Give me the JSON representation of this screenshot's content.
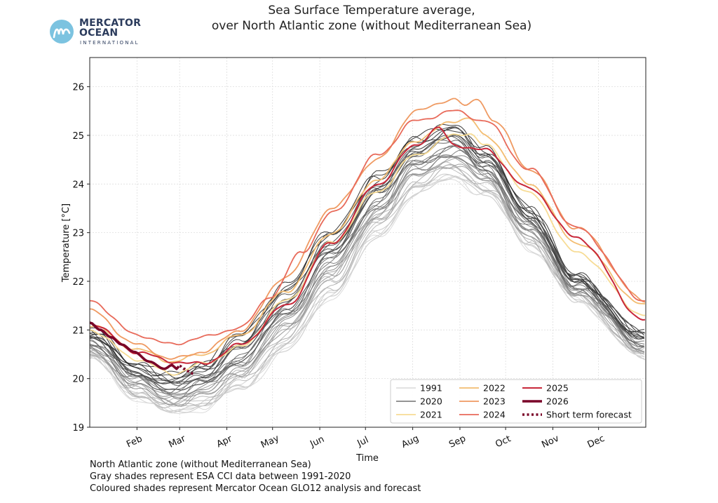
{
  "logo": {
    "line1": "MERCATOR",
    "line2": "OCEAN",
    "line3": "INTERNATIONAL"
  },
  "title": {
    "line1": "Sea Surface Temperature average,",
    "line2": "over North Atlantic zone (without Mediterranean Sea)"
  },
  "footer": {
    "line1": "North Atlantic zone (without Mediterranean Sea)",
    "line2": "Gray shades represent ESA CCI data between 1991-2020",
    "line3": "Coloured shades represent Mercator Ocean GLO12 analysis and forecast"
  },
  "colors": {
    "c1991": "#d0d0d0",
    "c2020": "#555555",
    "c2021": "#f7dc95",
    "c2022": "#f3bd71",
    "c2023": "#ef9a62",
    "c2024": "#e86a5a",
    "c2025": "#c8283a",
    "c2026": "#7a0428"
  },
  "chart_data": {
    "type": "line",
    "title": "Sea Surface Temperature average, over North Atlantic zone (without Mediterranean Sea)",
    "xlabel": "Time",
    "ylabel": "Temperature [°C]",
    "xlim": [
      1,
      366
    ],
    "ylim": [
      19,
      26.6
    ],
    "yticks": [
      19,
      20,
      21,
      22,
      23,
      24,
      25,
      26
    ],
    "xticks": [
      {
        "day": 32,
        "label": "Feb"
      },
      {
        "day": 60,
        "label": "Mar"
      },
      {
        "day": 91,
        "label": "Apr"
      },
      {
        "day": 121,
        "label": "May"
      },
      {
        "day": 152,
        "label": "Jun"
      },
      {
        "day": 182,
        "label": "Jul"
      },
      {
        "day": 213,
        "label": "Aug"
      },
      {
        "day": 244,
        "label": "Sep"
      },
      {
        "day": 274,
        "label": "Oct"
      },
      {
        "day": 305,
        "label": "Nov"
      },
      {
        "day": 335,
        "label": "Dec"
      }
    ],
    "grid": true,
    "legend_position": "lower-right",
    "legend": [
      "1991",
      "2020",
      "2021",
      "2022",
      "2023",
      "2024",
      "2025",
      "2026",
      "Short term forecast"
    ],
    "climatology_envelope": {
      "note_years": "1991-2020",
      "days": [
        1,
        32,
        55,
        75,
        100,
        130,
        160,
        190,
        215,
        240,
        260,
        290,
        320,
        366
      ],
      "min": [
        20.4,
        19.6,
        19.25,
        19.4,
        19.75,
        20.6,
        21.7,
        22.9,
        23.8,
        24.1,
        23.8,
        22.7,
        21.6,
        20.4
      ],
      "max": [
        21.0,
        20.3,
        20.05,
        20.3,
        20.9,
        21.9,
        23.05,
        24.15,
        24.95,
        25.2,
        24.7,
        23.5,
        22.1,
        20.9
      ]
    },
    "series": [
      {
        "name": "1991",
        "days": [
          1,
          32,
          55,
          75,
          100,
          130,
          160,
          190,
          215,
          240,
          260,
          290,
          320,
          366
        ],
        "values": [
          20.4,
          19.7,
          19.3,
          19.45,
          19.8,
          20.6,
          21.7,
          22.9,
          23.8,
          24.15,
          23.8,
          22.75,
          21.6,
          20.4
        ]
      },
      {
        "name": "2020",
        "days": [
          1,
          32,
          55,
          75,
          100,
          130,
          160,
          190,
          215,
          240,
          260,
          290,
          320,
          366
        ],
        "values": [
          20.85,
          20.1,
          19.75,
          19.9,
          20.35,
          21.4,
          22.6,
          23.8,
          24.7,
          25.15,
          24.6,
          23.3,
          22.1,
          20.95
        ]
      },
      {
        "name": "2021",
        "days": [
          1,
          32,
          55,
          75,
          100,
          130,
          160,
          190,
          215,
          240,
          250,
          260,
          290,
          320,
          366
        ],
        "values": [
          21.0,
          20.4,
          20.1,
          20.3,
          20.65,
          21.6,
          22.8,
          23.85,
          24.6,
          25.0,
          25.05,
          24.8,
          23.8,
          22.6,
          21.3
        ]
      },
      {
        "name": "2022",
        "days": [
          1,
          32,
          55,
          75,
          100,
          130,
          160,
          190,
          215,
          240,
          250,
          260,
          290,
          320,
          366
        ],
        "values": [
          21.1,
          20.6,
          20.35,
          20.5,
          20.9,
          21.8,
          23.0,
          24.1,
          24.9,
          25.3,
          25.35,
          25.0,
          24.0,
          22.8,
          21.5
        ]
      },
      {
        "name": "2023",
        "days": [
          1,
          32,
          55,
          75,
          100,
          130,
          160,
          190,
          215,
          240,
          248,
          256,
          266,
          290,
          320,
          366
        ],
        "values": [
          21.4,
          20.7,
          20.4,
          20.55,
          21.0,
          22.1,
          23.5,
          24.5,
          25.5,
          25.75,
          25.6,
          25.75,
          25.3,
          24.3,
          23.1,
          21.6
        ]
      },
      {
        "name": "2024",
        "days": [
          1,
          32,
          55,
          75,
          100,
          120,
          140,
          160,
          190,
          215,
          240,
          260,
          290,
          320,
          366
        ],
        "values": [
          21.6,
          20.9,
          20.7,
          20.85,
          21.05,
          21.7,
          22.6,
          23.4,
          24.6,
          25.3,
          25.5,
          25.3,
          24.3,
          23.1,
          21.6
        ]
      },
      {
        "name": "2025",
        "days": [
          1,
          32,
          55,
          75,
          100,
          130,
          160,
          190,
          215,
          230,
          240,
          260,
          290,
          320,
          366
        ],
        "values": [
          21.15,
          20.55,
          20.35,
          20.3,
          20.7,
          21.5,
          22.8,
          24.0,
          24.8,
          25.15,
          24.8,
          24.7,
          23.9,
          22.9,
          21.2
        ]
      },
      {
        "name": "2026",
        "days": [
          1,
          8,
          15,
          22,
          30,
          40,
          50,
          55,
          58,
          60
        ],
        "values": [
          21.15,
          21.0,
          20.85,
          20.7,
          20.55,
          20.35,
          20.2,
          20.28,
          20.2,
          20.26
        ]
      },
      {
        "name": "Short term forecast",
        "days": [
          60,
          63,
          66,
          69
        ],
        "values": [
          20.26,
          20.2,
          20.15,
          20.1
        ]
      }
    ]
  }
}
